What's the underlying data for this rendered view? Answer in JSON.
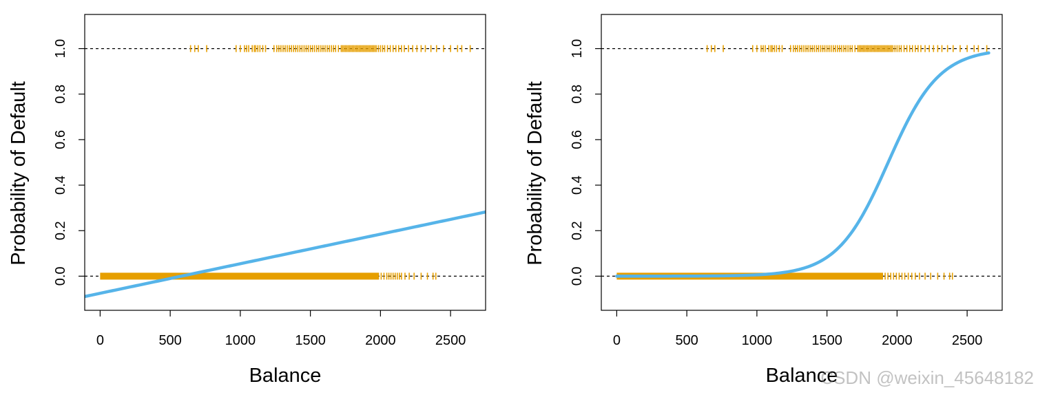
{
  "chart_data": [
    {
      "type": "line",
      "xlabel": "Balance",
      "ylabel": "Probability of Default",
      "xlim": [
        -110,
        2750
      ],
      "ylim": [
        -0.15,
        1.15
      ],
      "x_ticks": [
        0,
        500,
        1000,
        1500,
        2000,
        2500
      ],
      "x_tick_labels": [
        "0",
        "500",
        "1000",
        "1500",
        "2000",
        "2500"
      ],
      "y_ticks": [
        0.0,
        0.2,
        0.4,
        0.6,
        0.8,
        1.0
      ],
      "y_tick_labels": [
        "0.0",
        "0.2",
        "0.4",
        "0.6",
        "0.8",
        "1.0"
      ],
      "reference_lines": [
        0,
        1
      ],
      "grid": false,
      "fit": {
        "kind": "linear",
        "intercept": -0.0752,
        "slope": 0.0001299
      },
      "x_range": [
        -110,
        2750
      ],
      "rug_default_yes": {
        "y": 1,
        "x": [
          645,
          675,
          700,
          760,
          970,
          1000,
          1030,
          1045,
          1060,
          1085,
          1100,
          1110,
          1125,
          1140,
          1160,
          1180,
          1240,
          1260,
          1275,
          1290,
          1305,
          1320,
          1335,
          1350,
          1365,
          1380,
          1395,
          1410,
          1425,
          1440,
          1455,
          1470,
          1485,
          1500,
          1515,
          1530,
          1545,
          1560,
          1575,
          1590,
          1605,
          1620,
          1635,
          1650,
          1665,
          1680,
          1700,
          1720,
          1730,
          1740,
          1750,
          1760,
          1770,
          1780,
          1790,
          1800,
          1810,
          1820,
          1830,
          1840,
          1850,
          1860,
          1870,
          1880,
          1890,
          1900,
          1910,
          1920,
          1930,
          1940,
          1950,
          1960,
          1970,
          1985,
          2000,
          2015,
          2030,
          2050,
          2070,
          2090,
          2110,
          2130,
          2150,
          2170,
          2200,
          2230,
          2260,
          2290,
          2320,
          2360,
          2400,
          2450,
          2500,
          2550,
          2580,
          2640
        ]
      },
      "rug_default_no": {
        "y": 0,
        "x_dense_range": [
          0,
          1990
        ],
        "x": [
          2005,
          2025,
          2045,
          2060,
          2075,
          2090,
          2105,
          2120,
          2135,
          2150,
          2175,
          2205,
          2240,
          2290,
          2335,
          2375,
          2395
        ]
      }
    },
    {
      "type": "line",
      "xlabel": "Balance",
      "ylabel": "Probability of Default",
      "xlim": [
        -110,
        2750
      ],
      "ylim": [
        -0.15,
        1.15
      ],
      "x_ticks": [
        0,
        500,
        1000,
        1500,
        2000,
        2500
      ],
      "x_tick_labels": [
        "0",
        "500",
        "1000",
        "1500",
        "2000",
        "2500"
      ],
      "y_ticks": [
        0.0,
        0.2,
        0.4,
        0.6,
        0.8,
        1.0
      ],
      "y_tick_labels": [
        "0.0",
        "0.2",
        "0.4",
        "0.6",
        "0.8",
        "1.0"
      ],
      "reference_lines": [
        0,
        1
      ],
      "grid": false,
      "fit": {
        "kind": "logistic",
        "intercept": -10.65,
        "slope": 0.005499
      },
      "x_range": [
        0,
        2654
      ],
      "rug_default_yes": {
        "y": 1,
        "x": [
          645,
          675,
          700,
          760,
          970,
          1000,
          1030,
          1045,
          1060,
          1085,
          1100,
          1110,
          1125,
          1140,
          1160,
          1180,
          1240,
          1260,
          1275,
          1290,
          1305,
          1320,
          1335,
          1350,
          1365,
          1380,
          1395,
          1410,
          1425,
          1440,
          1455,
          1470,
          1485,
          1500,
          1515,
          1530,
          1545,
          1560,
          1575,
          1590,
          1605,
          1620,
          1635,
          1650,
          1665,
          1680,
          1700,
          1720,
          1730,
          1740,
          1750,
          1760,
          1770,
          1780,
          1790,
          1800,
          1810,
          1820,
          1830,
          1840,
          1850,
          1860,
          1870,
          1880,
          1890,
          1900,
          1910,
          1920,
          1930,
          1940,
          1950,
          1960,
          1970,
          1985,
          2000,
          2015,
          2030,
          2050,
          2070,
          2090,
          2110,
          2130,
          2150,
          2170,
          2200,
          2230,
          2260,
          2290,
          2320,
          2360,
          2400,
          2450,
          2500,
          2550,
          2580,
          2640
        ]
      },
      "rug_default_no": {
        "y": 0,
        "x_dense_range": [
          0,
          1900
        ],
        "x": [
          1915,
          1935,
          1955,
          1975,
          1995,
          2015,
          2035,
          2055,
          2080,
          2105,
          2130,
          2160,
          2200,
          2240,
          2290,
          2335,
          2375,
          2395
        ]
      }
    }
  ],
  "colors": {
    "fit_line": "#56B4E9",
    "rug": "#E69F00",
    "reference_line": "#000000",
    "frame": "#000000"
  },
  "watermark": "CSDN @weixin_45648182"
}
